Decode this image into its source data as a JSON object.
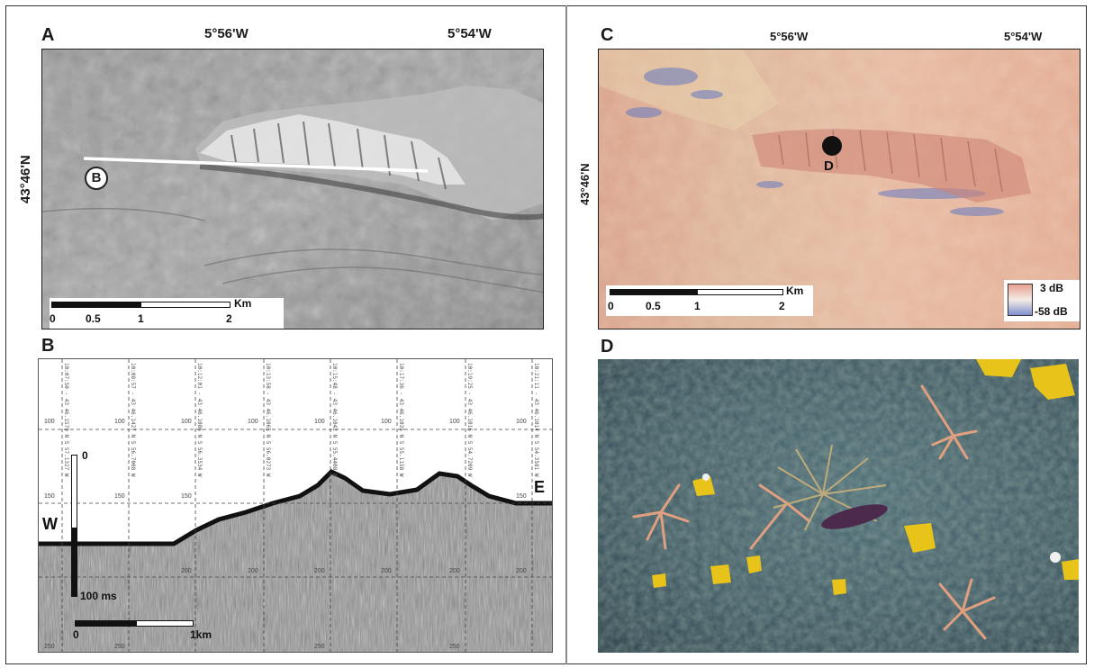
{
  "panels": {
    "a": {
      "label": "A",
      "lon_left": "5°56'W",
      "lon_right": "5°54'W",
      "lat": "43°46'N",
      "profile_marker": "B",
      "scale": {
        "unit": "Km",
        "ticks": [
          "0",
          "0.5",
          "1",
          "2"
        ]
      }
    },
    "b": {
      "label": "B",
      "west": "W",
      "east": "E",
      "vscale_top": "0",
      "vscale_bottom": "100 ms",
      "hscale": {
        "left": "0",
        "right": "1km"
      },
      "grid_100": "100",
      "grid_150": "150",
      "grid_200": "200",
      "grid_250": "250",
      "fixes": [
        "10:07:50 - 43 46.1579 N 5 57.1327 W",
        "10:08:57 - 43 46.1427 N 5 56.7008 W",
        "10:12:01 - 43 46.1086 N 5 56.3534 W",
        "10:13:58 - 43 46.1065 N 5 56.0273 W",
        "10:15:48 - 43 46.1042 N 5 55.4408 W",
        "10:17:36 - 43 46.1035 N 5 55.1158 W",
        "10:19:25 - 43 46.1016 N 5 54.7209 W",
        "10:21:11 - 43 46.1014 N 5 54.3581 W"
      ]
    },
    "c": {
      "label": "C",
      "lon_left": "5°56'W",
      "lon_right": "5°54'W",
      "lat": "43°46'N",
      "site_marker": "D",
      "scale": {
        "unit": "Km",
        "ticks": [
          "0",
          "0.5",
          "1",
          "2"
        ]
      },
      "legend": {
        "high": "3 dB",
        "low": "-58 dB",
        "color_high": "#e8a090",
        "color_low": "#7f8fcf"
      }
    },
    "d": {
      "label": "D"
    }
  }
}
